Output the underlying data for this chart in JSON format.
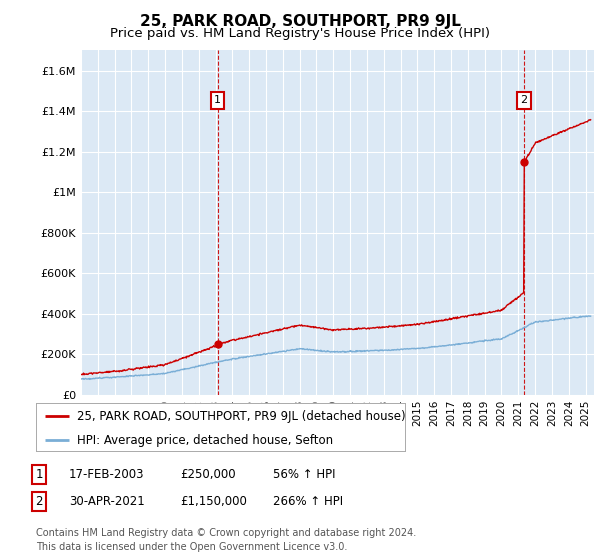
{
  "title": "25, PARK ROAD, SOUTHPORT, PR9 9JL",
  "subtitle": "Price paid vs. HM Land Registry's House Price Index (HPI)",
  "ylabel_ticks": [
    "£0",
    "£200K",
    "£400K",
    "£600K",
    "£800K",
    "£1M",
    "£1.2M",
    "£1.4M",
    "£1.6M"
  ],
  "ytick_values": [
    0,
    200000,
    400000,
    600000,
    800000,
    1000000,
    1200000,
    1400000,
    1600000
  ],
  "ylim": [
    0,
    1700000
  ],
  "xlim_start": 1995.0,
  "xlim_end": 2025.5,
  "background_color": "#dce9f5",
  "plot_bg_color": "#dce9f5",
  "grid_color": "#ffffff",
  "red_line_color": "#cc0000",
  "blue_line_color": "#7aaed6",
  "marker1_x": 2003.12,
  "marker1_y": 250000,
  "marker2_x": 2021.33,
  "marker2_y": 1150000,
  "legend_label1": "25, PARK ROAD, SOUTHPORT, PR9 9JL (detached house)",
  "legend_label2": "HPI: Average price, detached house, Sefton",
  "table_row1_num": "1",
  "table_row1_date": "17-FEB-2003",
  "table_row1_price": "£250,000",
  "table_row1_hpi": "56% ↑ HPI",
  "table_row2_num": "2",
  "table_row2_date": "30-APR-2021",
  "table_row2_price": "£1,150,000",
  "table_row2_hpi": "266% ↑ HPI",
  "footer": "Contains HM Land Registry data © Crown copyright and database right 2024.\nThis data is licensed under the Open Government Licence v3.0.",
  "title_fontsize": 11,
  "subtitle_fontsize": 9.5,
  "tick_fontsize": 8,
  "legend_fontsize": 8.5,
  "table_fontsize": 8.5,
  "footer_fontsize": 7
}
